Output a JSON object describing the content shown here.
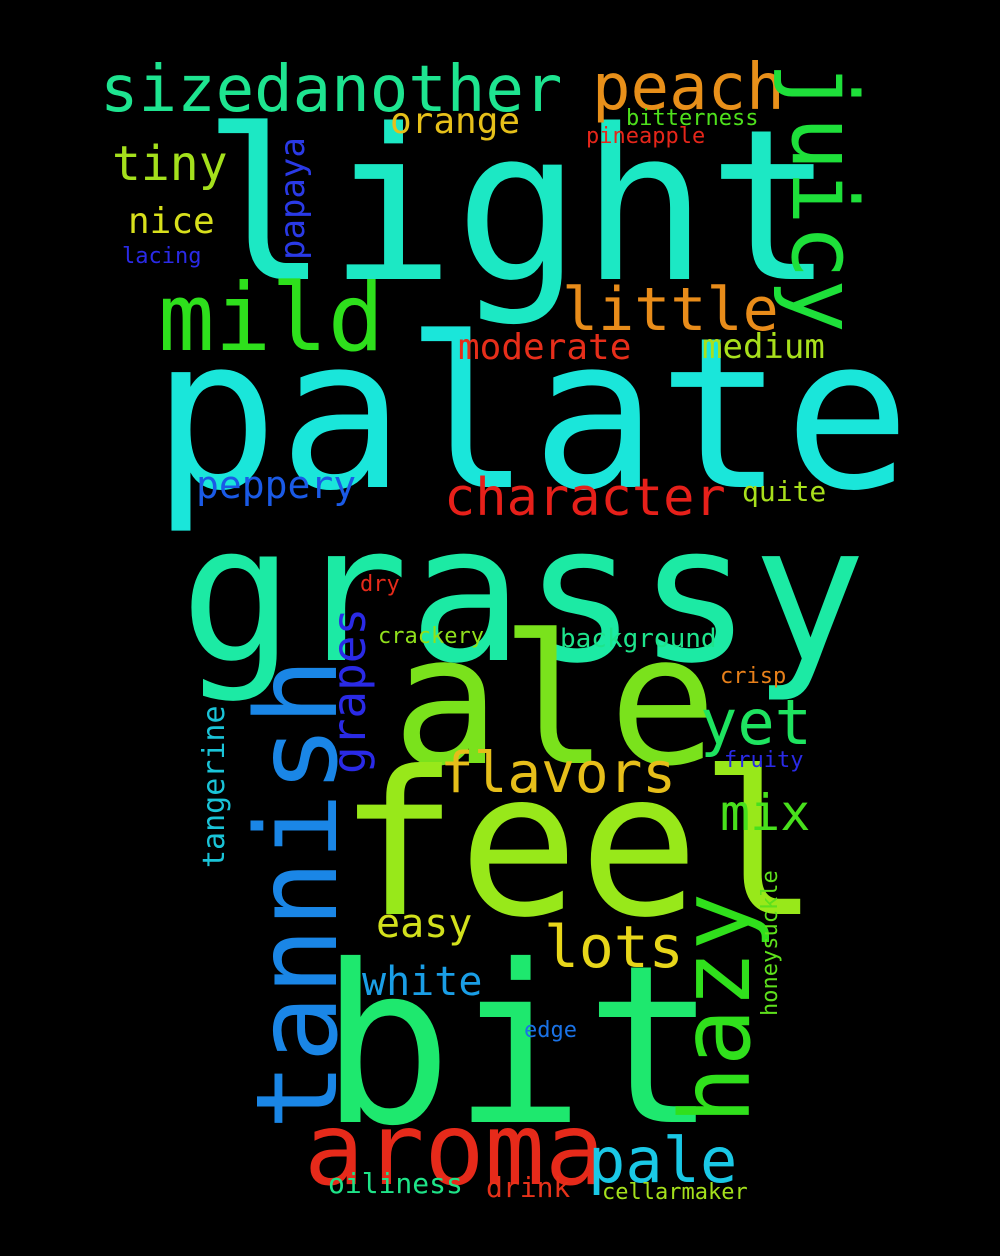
{
  "background": "#000000",
  "words": {
    "light": {
      "text": "light",
      "color": "#1ce8c4"
    },
    "palate": {
      "text": "palate",
      "color": "#1ae6da"
    },
    "grassy": {
      "text": "grassy",
      "color": "#1ceaa4"
    },
    "ale": {
      "text": "ale",
      "color": "#7ae21c"
    },
    "feel": {
      "text": "feel",
      "color": "#98e81a"
    },
    "bit": {
      "text": "bit",
      "color": "#1ee86e"
    },
    "tannish": {
      "text": "tannish",
      "color": "#1a86e6"
    },
    "aroma": {
      "text": "aroma",
      "color": "#e62a1a"
    },
    "mild": {
      "text": "mild",
      "color": "#2ee01c"
    },
    "juicy": {
      "text": "juicy",
      "color": "#1ee03a"
    },
    "hazy": {
      "text": "hazy",
      "color": "#30e01c"
    },
    "sizedanother": {
      "text": "sizedanother",
      "color": "#1ee490"
    },
    "peach": {
      "text": "peach",
      "color": "#e8901a"
    },
    "little": {
      "text": "little",
      "color": "#e88c1a"
    },
    "character": {
      "text": "character",
      "color": "#e6201a"
    },
    "flavors": {
      "text": "flavors",
      "color": "#e6be1a"
    },
    "lots": {
      "text": "lots",
      "color": "#e8d61a"
    },
    "pale": {
      "text": "pale",
      "color": "#1ac8e6"
    },
    "yet": {
      "text": "yet",
      "color": "#1ee460"
    },
    "mix": {
      "text": "mix",
      "color": "#48e01c"
    },
    "tiny": {
      "text": "tiny",
      "color": "#a4e01c"
    },
    "grapes": {
      "text": "grapes",
      "color": "#2a2ae6"
    },
    "white": {
      "text": "white",
      "color": "#1a9ee6"
    },
    "easy": {
      "text": "easy",
      "color": "#d2e01c"
    },
    "peppery": {
      "text": "peppery",
      "color": "#1a5ae6"
    },
    "moderate": {
      "text": "moderate",
      "color": "#e62e1a"
    },
    "medium": {
      "text": "medium",
      "color": "#a8e01c"
    },
    "orange": {
      "text": "orange",
      "color": "#e6c01a"
    },
    "nice": {
      "text": "nice",
      "color": "#d8e01c"
    },
    "papaya": {
      "text": "papaya",
      "color": "#2a3ae6"
    },
    "quite": {
      "text": "quite",
      "color": "#a8e01c"
    },
    "tangerine": {
      "text": "tangerine",
      "color": "#1ac4d8"
    },
    "aroma_drink": {
      "text": "drink",
      "color": "#e6321a"
    },
    "oiliness": {
      "text": "oiliness",
      "color": "#1ee488"
    },
    "cellarmaker": {
      "text": "cellarmaker",
      "color": "#a4e01c"
    },
    "honeysuckle": {
      "text": "honeysuckle",
      "color": "#5ee01c"
    },
    "edge": {
      "text": "edge",
      "color": "#1a72e6"
    },
    "fruity": {
      "text": "fruity",
      "color": "#2a2ae6"
    },
    "crisp": {
      "text": "crisp",
      "color": "#e8801a"
    },
    "background_word": {
      "text": "background",
      "color": "#1ee48c"
    },
    "crackery": {
      "text": "crackery",
      "color": "#90e01c"
    },
    "dry": {
      "text": "dry",
      "color": "#e62a1a"
    },
    "lacing": {
      "text": "lacing",
      "color": "#2a2ae6"
    },
    "bitterness": {
      "text": "bitterness",
      "color": "#4ee01c"
    },
    "pineapple": {
      "text": "pineapple",
      "color": "#e6261a"
    }
  }
}
